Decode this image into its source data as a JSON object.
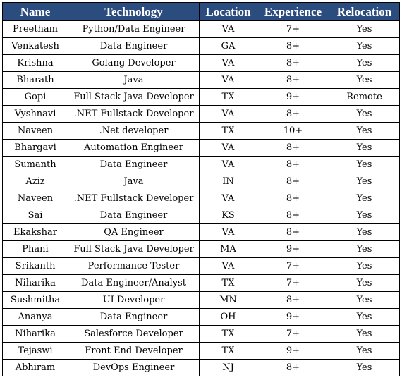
{
  "colors": {
    "header_background": "#2B4C7E",
    "header_text": "#FFFFFF",
    "grid": "#000000"
  },
  "table": {
    "headers": [
      "Name",
      "Technology",
      "Location",
      "Experience",
      "Relocation"
    ],
    "rows": [
      [
        "Preetham",
        "Python/Data Engineer",
        "VA",
        "7+",
        "Yes"
      ],
      [
        "Venkatesh",
        "Data Engineer",
        "GA",
        "8+",
        "Yes"
      ],
      [
        "Krishna",
        "Golang Developer",
        "VA",
        "8+",
        "Yes"
      ],
      [
        "Bharath",
        "Java",
        "VA",
        "8+",
        "Yes"
      ],
      [
        "Gopi",
        "Full Stack Java Developer",
        "TX",
        "9+",
        "Remote"
      ],
      [
        "Vyshnavi",
        ".NET Fullstack Developer",
        "VA",
        "8+",
        "Yes"
      ],
      [
        "Naveen",
        ".Net developer",
        "TX",
        "10+",
        "Yes"
      ],
      [
        "Bhargavi",
        "Automation Engineer",
        "VA",
        "8+",
        "Yes"
      ],
      [
        "Sumanth",
        "Data Engineer",
        "VA",
        "8+",
        "Yes"
      ],
      [
        "Aziz",
        "Java",
        "IN",
        "8+",
        "Yes"
      ],
      [
        "Naveen",
        ".NET Fullstack Developer",
        "VA",
        "8+",
        "Yes"
      ],
      [
        "Sai",
        "Data Engineer",
        "KS",
        "8+",
        "Yes"
      ],
      [
        "Ekakshar",
        "QA Engineer",
        "VA",
        "8+",
        "Yes"
      ],
      [
        "Phani",
        "Full Stack Java Developer",
        "MA",
        "9+",
        "Yes"
      ],
      [
        "Srikanth",
        "Performance Tester",
        "VA",
        "7+",
        "Yes"
      ],
      [
        "Niharika",
        "Data Engineer/Analyst",
        "TX",
        "7+",
        "Yes"
      ],
      [
        "Sushmitha",
        "UI Developer",
        "MN",
        "8+",
        "Yes"
      ],
      [
        "Ananya",
        "Data Engineer",
        "OH",
        "9+",
        "Yes"
      ],
      [
        "Niharika",
        "Salesforce Developer",
        "TX",
        "7+",
        "Yes"
      ],
      [
        "Tejaswi",
        "Front End Developer",
        "TX",
        "9+",
        "Yes"
      ],
      [
        "Abhiram",
        "DevOps Engineer",
        "NJ",
        "8+",
        "Yes"
      ]
    ]
  }
}
